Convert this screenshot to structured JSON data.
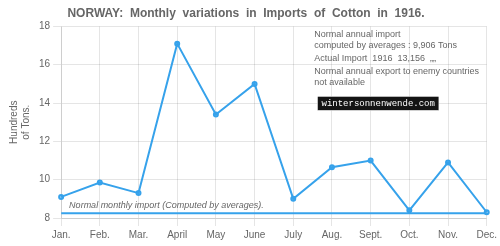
{
  "chart_data": {
    "type": "line",
    "title": "NORWAY:  Monthly  variations  in  Imports  of  Cotton  in  1916.",
    "ylabel": "Hundreds\nof Tons.",
    "categories": [
      "Jan.",
      "Feb.",
      "Mar.",
      "April",
      "May",
      "June",
      "July",
      "Aug.",
      "Sept.",
      "Oct.",
      "Nov.",
      "Dec."
    ],
    "values": [
      9.1,
      9.85,
      9.3,
      17.1,
      13.4,
      15.0,
      9.0,
      10.65,
      11.0,
      8.4,
      10.9,
      8.3
    ],
    "reference_line": {
      "value": 8.25,
      "label": "Normal monthly import (Computed by averages)."
    },
    "annotations": [
      "Normal annual import\ncomputed by averages : 9,906 Tons",
      "Actual Import  1916  13,156  „„",
      "Normal annual export to enemy countries not available"
    ],
    "watermark": "wintersonnenwende.com",
    "ylim": [
      8,
      18
    ],
    "yticks": [
      8,
      10,
      12,
      14,
      16,
      18
    ],
    "grid": true
  }
}
